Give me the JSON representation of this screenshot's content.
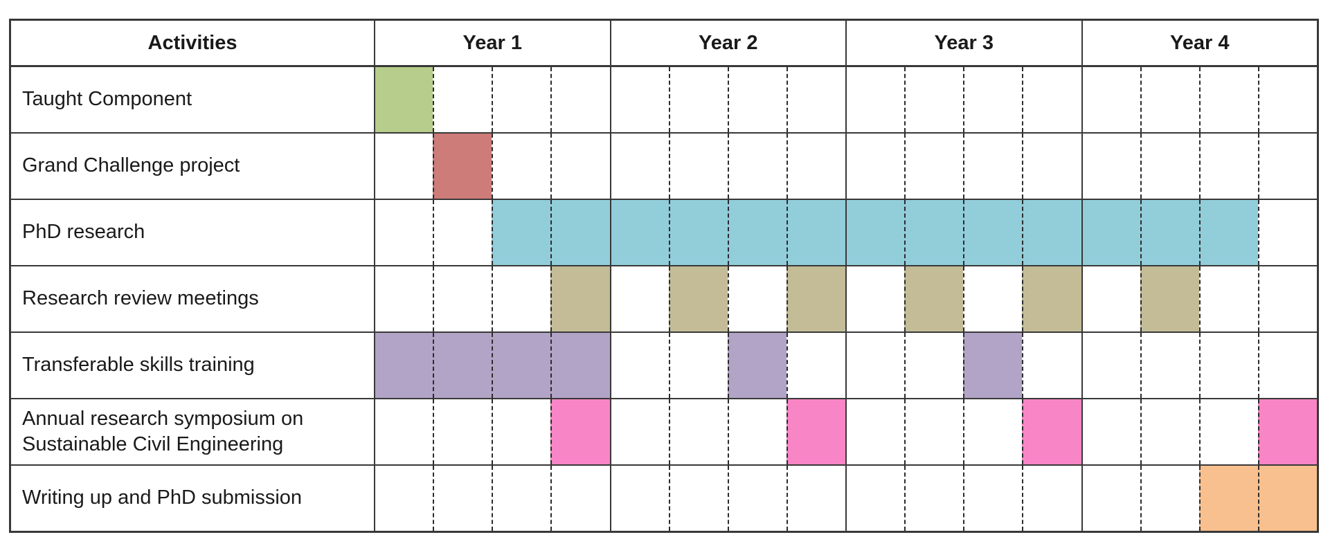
{
  "chart_data": {
    "type": "table",
    "subtype": "gantt",
    "columns": [
      "Activities",
      "Year 1",
      "Year 2",
      "Year 3",
      "Year 4"
    ],
    "quarters_per_year": 4,
    "quarter_grid": "dashed",
    "colors": {
      "taught_component": "#b6cd8c",
      "grand_challenge_project": "#cd7c79",
      "phd_research": "#92cdda",
      "research_review_meetings": "#c4bc96",
      "transferable_skills_training": "#b1a4c6",
      "annual_research_symposium": "#f885c5",
      "writing_up_submission": "#f9c08f",
      "grid_solid": "#383838",
      "grid_dashed": "#2b2b2b"
    },
    "rows": [
      {
        "label": "Taught Component",
        "color": "#b6cd8c",
        "cells": [
          1,
          0,
          0,
          0,
          0,
          0,
          0,
          0,
          0,
          0,
          0,
          0,
          0,
          0,
          0,
          0
        ]
      },
      {
        "label": "Grand Challenge project",
        "color": "#cd7c79",
        "cells": [
          0,
          1,
          0,
          0,
          0,
          0,
          0,
          0,
          0,
          0,
          0,
          0,
          0,
          0,
          0,
          0
        ]
      },
      {
        "label": "PhD research",
        "color": "#92cdda",
        "cells": [
          0,
          0,
          1,
          1,
          1,
          1,
          1,
          1,
          1,
          1,
          1,
          1,
          1,
          1,
          1,
          0
        ]
      },
      {
        "label": "Research review meetings",
        "color": "#c4bc96",
        "cells": [
          0,
          0,
          0,
          1,
          0,
          1,
          0,
          1,
          0,
          1,
          0,
          1,
          0,
          1,
          0,
          0
        ]
      },
      {
        "label": "Transferable skills training",
        "color": "#b1a4c6",
        "cells": [
          1,
          1,
          1,
          1,
          0,
          0,
          1,
          0,
          0,
          0,
          1,
          0,
          0,
          0,
          0,
          0
        ]
      },
      {
        "label": "Annual research symposium on Sustainable Civil Engineering",
        "color": "#f885c5",
        "cells": [
          0,
          0,
          0,
          1,
          0,
          0,
          0,
          1,
          0,
          0,
          0,
          1,
          0,
          0,
          0,
          1
        ]
      },
      {
        "label": "Writing up and PhD submission",
        "color": "#f9c08f",
        "cells": [
          0,
          0,
          0,
          0,
          0,
          0,
          0,
          0,
          0,
          0,
          0,
          0,
          0,
          0,
          1,
          1
        ]
      }
    ]
  }
}
